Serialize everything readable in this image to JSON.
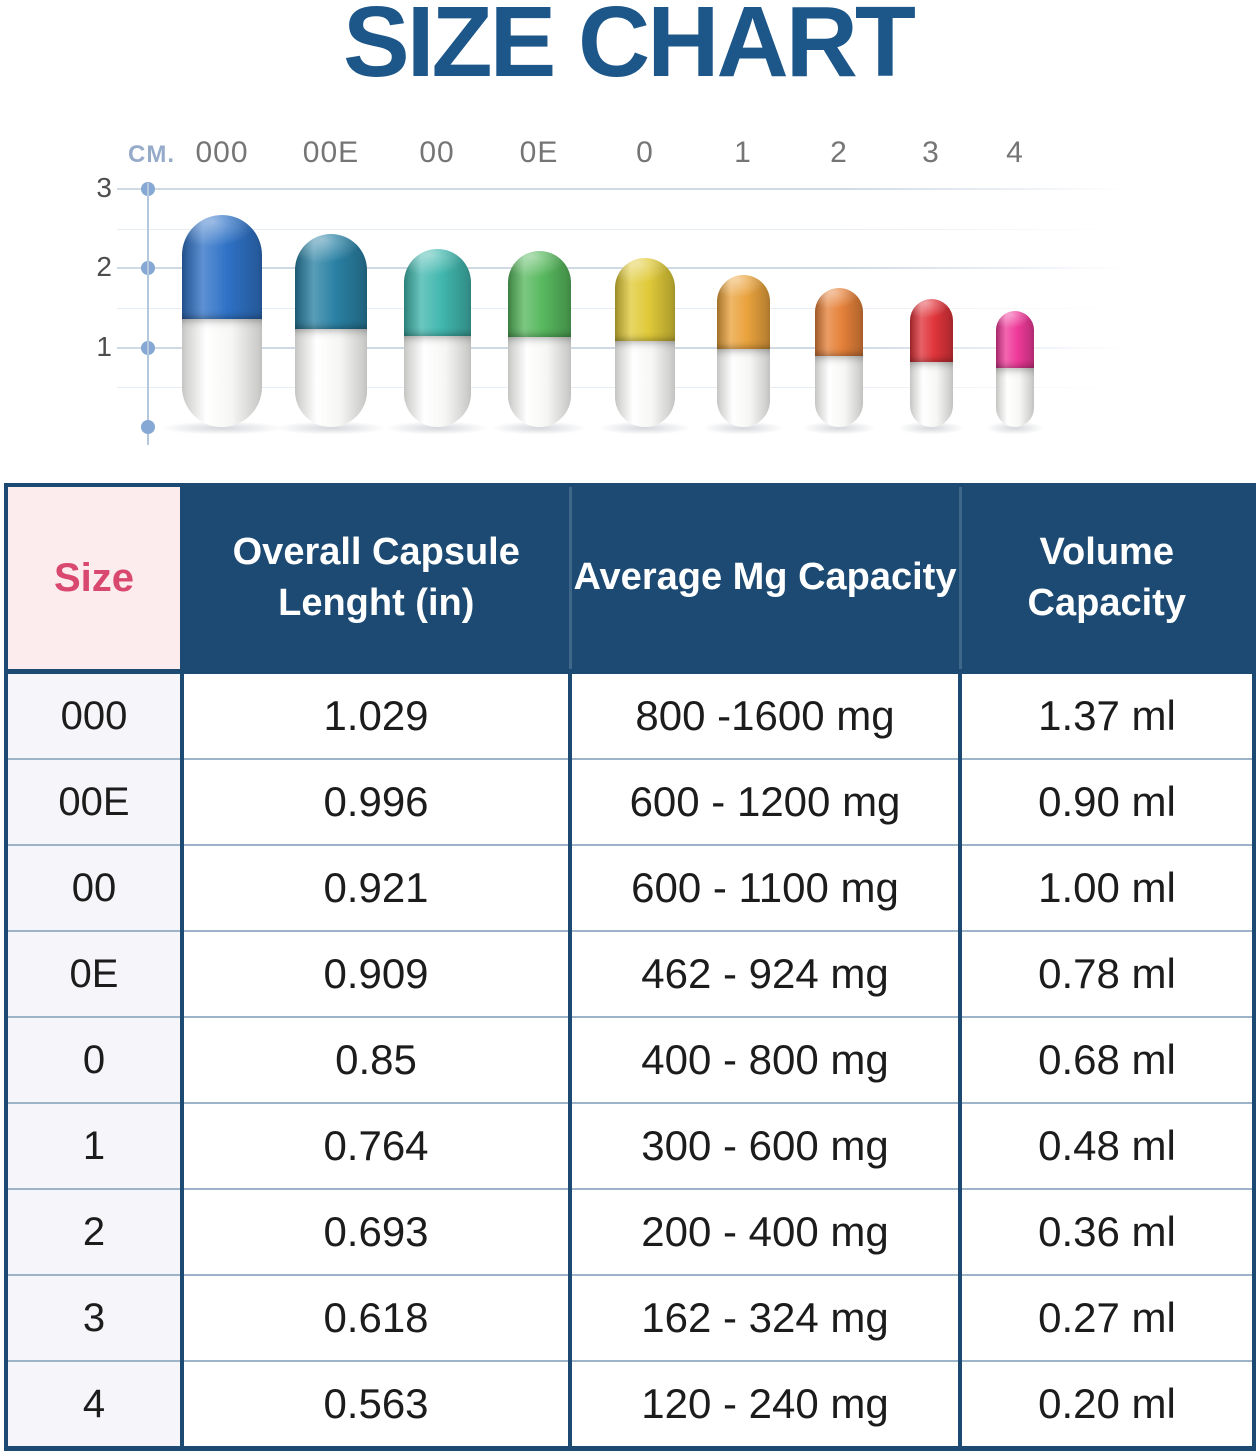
{
  "title": "SIZE CHART",
  "colors": {
    "title_text": "#1d578a",
    "header_bg": "#1c4a72",
    "header_text": "#ffffff",
    "size_header_bg": "#fdecee",
    "size_header_text": "#d8486f",
    "size_column_bg": "#f5f5fa",
    "table_border": "#1c4a72",
    "row_divider": "#9db3c7",
    "axis_line": "#b4c7dd",
    "axis_dot": "#85a8d4",
    "gridline_major": "#cfdae5",
    "gridline_minor": "#e5ecf2",
    "tick_text": "#4d4d4d",
    "capsule_label_text": "#757575",
    "unit_label_text": "#96abc9",
    "cell_text": "#1c1c1c"
  },
  "diagram": {
    "unit_label": "CM.",
    "y_ticks": [
      {
        "label": "3",
        "cm": 3
      },
      {
        "label": "2",
        "cm": 2
      },
      {
        "label": "1",
        "cm": 1
      }
    ],
    "minor_grid_cm": [
      2.5,
      1.5,
      0.5
    ],
    "capsules": [
      {
        "label": "000",
        "color": "#2f72c6",
        "height_cm": 2.67,
        "width_cm": 1.01
      },
      {
        "label": "00E",
        "color": "#2a81a4",
        "height_cm": 2.43,
        "width_cm": 0.91
      },
      {
        "label": "00",
        "color": "#41b7ae",
        "height_cm": 2.24,
        "width_cm": 0.85
      },
      {
        "label": "0E",
        "color": "#57b85e",
        "height_cm": 2.22,
        "width_cm": 0.79
      },
      {
        "label": "0",
        "color": "#e0ca39",
        "height_cm": 2.13,
        "width_cm": 0.76
      },
      {
        "label": "1",
        "color": "#eaa33d",
        "height_cm": 1.92,
        "width_cm": 0.67
      },
      {
        "label": "2",
        "color": "#e5813a",
        "height_cm": 1.75,
        "width_cm": 0.61
      },
      {
        "label": "3",
        "color": "#e0353b",
        "height_cm": 1.61,
        "width_cm": 0.54
      },
      {
        "label": "4",
        "color": "#f03a9a",
        "height_cm": 1.46,
        "width_cm": 0.48
      }
    ]
  },
  "table": {
    "headers": [
      "Size",
      "Overall Capsule Lenght (in)",
      "Average Mg Capacity",
      "Volume Capacity"
    ],
    "rows": [
      [
        "000",
        "1.029",
        "800 -1600 mg",
        "1.37 ml"
      ],
      [
        "00E",
        "0.996",
        "600 - 1200 mg",
        "0.90 ml"
      ],
      [
        "00",
        "0.921",
        "600 - 1100 mg",
        "1.00 ml"
      ],
      [
        "0E",
        "0.909",
        "462 - 924 mg",
        "0.78 ml"
      ],
      [
        "0",
        "0.85",
        "400 - 800 mg",
        "0.68 ml"
      ],
      [
        "1",
        "0.764",
        "300 - 600 mg",
        "0.48 ml"
      ],
      [
        "2",
        "0.693",
        "200 - 400 mg",
        "0.36 ml"
      ],
      [
        "3",
        "0.618",
        "162 - 324 mg",
        "0.27 ml"
      ],
      [
        "4",
        "0.563",
        "120 - 240 mg",
        "0.20 ml"
      ]
    ]
  },
  "chart_data": [
    {
      "type": "bar",
      "title": "SIZE CHART",
      "subtitle": "capsule pictogram chart",
      "ylabel": "CM.",
      "ylim": [
        0,
        3
      ],
      "grid": true,
      "categories": [
        "000",
        "00E",
        "00",
        "0E",
        "0",
        "1",
        "2",
        "3",
        "4"
      ],
      "values": [
        2.67,
        2.43,
        2.24,
        2.22,
        2.13,
        1.92,
        1.75,
        1.61,
        1.46
      ],
      "colors": [
        "#2f72c6",
        "#2a81a4",
        "#41b7ae",
        "#57b85e",
        "#e0ca39",
        "#eaa33d",
        "#e5813a",
        "#e0353b",
        "#f03a9a"
      ]
    },
    {
      "type": "table",
      "columns": [
        "Size",
        "Overall Capsule Lenght (in)",
        "Average Mg Capacity",
        "Volume Capacity"
      ],
      "rows": [
        [
          "000",
          "1.029",
          "800 -1600 mg",
          "1.37 ml"
        ],
        [
          "00E",
          "0.996",
          "600 - 1200 mg",
          "0.90 ml"
        ],
        [
          "00",
          "0.921",
          "600 - 1100 mg",
          "1.00 ml"
        ],
        [
          "0E",
          "0.909",
          "462 - 924 mg",
          "0.78 ml"
        ],
        [
          "0",
          "0.85",
          "400 - 800 mg",
          "0.68 ml"
        ],
        [
          "1",
          "0.764",
          "300 - 600 mg",
          "0.48 ml"
        ],
        [
          "2",
          "0.693",
          "200 - 400 mg",
          "0.36 ml"
        ],
        [
          "3",
          "0.618",
          "162 - 324 mg",
          "0.27 ml"
        ],
        [
          "4",
          "0.563",
          "120 - 240 mg",
          "0.20 ml"
        ]
      ]
    }
  ]
}
